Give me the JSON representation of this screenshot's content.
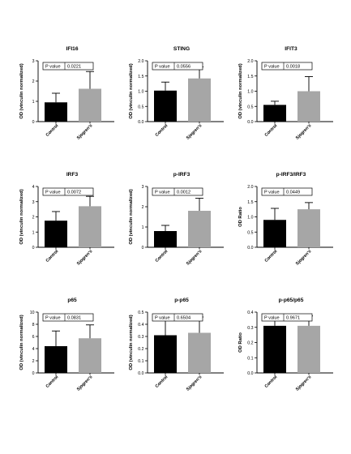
{
  "chart_data": [
    {
      "type": "bar",
      "title": "IFI16",
      "ylabel": "OD (vinculin normalized)",
      "categories": [
        "Control",
        "Sjogren's"
      ],
      "values": [
        0.95,
        1.62
      ],
      "errors": [
        0.45,
        0.85
      ],
      "ylim": [
        0,
        3
      ],
      "yticks": [
        "0",
        "1",
        "2",
        "3"
      ],
      "pvalue_label": "P value",
      "pvalue": "0.0221",
      "colors": [
        "#000000",
        "#a6a6a6"
      ]
    },
    {
      "type": "bar",
      "title": "STING",
      "ylabel": "OD (vinculin normalized)",
      "categories": [
        "Control",
        "Sjogren's"
      ],
      "values": [
        1.02,
        1.42
      ],
      "errors": [
        0.28,
        0.38
      ],
      "ylim": [
        0,
        2.0
      ],
      "yticks": [
        "0.0",
        "0.5",
        "1.0",
        "1.5",
        "2.0"
      ],
      "pvalue_label": "P value",
      "pvalue": "0.0556",
      "colors": [
        "#000000",
        "#a6a6a6"
      ]
    },
    {
      "type": "bar",
      "title": "IFIT3",
      "ylabel": "OD (vinculin normalized)",
      "categories": [
        "Control",
        "Sjogren's"
      ],
      "values": [
        0.55,
        1.0
      ],
      "errors": [
        0.12,
        0.48
      ],
      "ylim": [
        0,
        2.0
      ],
      "yticks": [
        "0.0",
        "0.5",
        "1.0",
        "1.5",
        "2.0"
      ],
      "pvalue_label": "P value",
      "pvalue": "0.0018",
      "colors": [
        "#000000",
        "#a6a6a6"
      ]
    },
    {
      "type": "bar",
      "title": "IRF3",
      "ylabel": "OD (vinculin normalized)",
      "categories": [
        "Control",
        "Sjogren's"
      ],
      "values": [
        1.75,
        2.7
      ],
      "errors": [
        0.6,
        0.65
      ],
      "ylim": [
        0,
        4
      ],
      "yticks": [
        "0",
        "1",
        "2",
        "3",
        "4"
      ],
      "pvalue_label": "P value",
      "pvalue": "0.0072",
      "colors": [
        "#000000",
        "#a6a6a6"
      ]
    },
    {
      "type": "bar",
      "title": "p-IRF3",
      "ylabel": "OD (vinculin normalized)",
      "categories": [
        "Control",
        "Sjogren's"
      ],
      "values": [
        0.8,
        1.8
      ],
      "errors": [
        0.28,
        0.62
      ],
      "ylim": [
        0,
        3
      ],
      "yticks": [
        "0",
        "1",
        "2",
        "3"
      ],
      "pvalue_label": "P value",
      "pvalue": "0.0012",
      "colors": [
        "#000000",
        "#a6a6a6"
      ]
    },
    {
      "type": "bar",
      "title": "p-IRF3/IRF3",
      "ylabel": "OD Ratio",
      "categories": [
        "Control",
        "Sjogren's"
      ],
      "values": [
        0.9,
        1.25
      ],
      "errors": [
        0.38,
        0.22
      ],
      "ylim": [
        0,
        2.0
      ],
      "yticks": [
        "0.0",
        "0.5",
        "1.0",
        "1.5",
        "2.0"
      ],
      "pvalue_label": "P value",
      "pvalue": "0.0449",
      "colors": [
        "#000000",
        "#a6a6a6"
      ]
    },
    {
      "type": "bar",
      "title": "p65",
      "ylabel": "OD (vinculin normalized)",
      "categories": [
        "Control",
        "Sjogren's"
      ],
      "values": [
        4.4,
        5.7
      ],
      "errors": [
        2.5,
        2.2
      ],
      "ylim": [
        0,
        10
      ],
      "yticks": [
        "0",
        "2",
        "4",
        "6",
        "8",
        "10"
      ],
      "pvalue_label": "P value",
      "pvalue": "0.0831",
      "colors": [
        "#000000",
        "#a6a6a6"
      ]
    },
    {
      "type": "bar",
      "title": "p-p65",
      "ylabel": "OD (vinculin normalized)",
      "categories": [
        "Control",
        "Sjogren's"
      ],
      "values": [
        0.31,
        0.33
      ],
      "errors": [
        0.16,
        0.13
      ],
      "ylim": [
        0,
        0.5
      ],
      "yticks": [
        "0.0",
        "0.1",
        "0.2",
        "0.3",
        "0.4",
        "0.5"
      ],
      "pvalue_label": "P value",
      "pvalue": "0.6504",
      "colors": [
        "#000000",
        "#a6a6a6"
      ]
    },
    {
      "type": "bar",
      "title": "p-p65/p65",
      "ylabel": "OD Ratio",
      "categories": [
        "Control",
        "Sjogren's"
      ],
      "values": [
        0.31,
        0.31
      ],
      "errors": [
        0.055,
        0.065
      ],
      "ylim": [
        0,
        0.4
      ],
      "yticks": [
        "0.0",
        "0.1",
        "0.2",
        "0.3",
        "0.4"
      ],
      "pvalue_label": "P value",
      "pvalue": "0.9671",
      "colors": [
        "#000000",
        "#a6a6a6"
      ]
    }
  ]
}
